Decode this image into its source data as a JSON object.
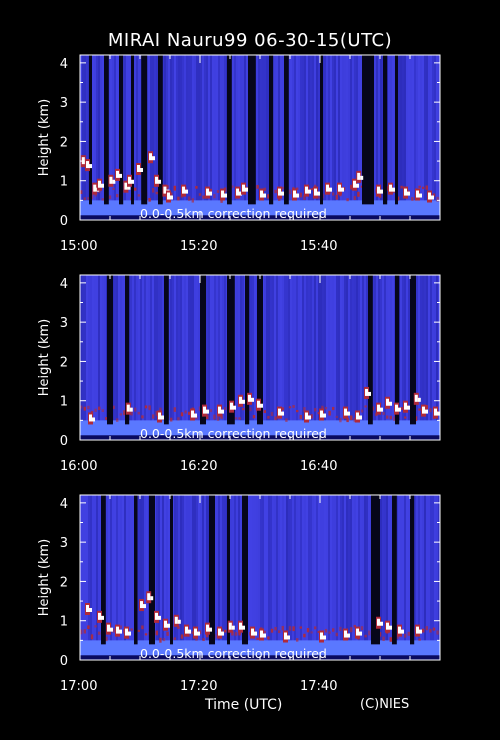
{
  "title": "MIRAI Nauru99 06-30-15(UTC)",
  "xlabel": "Time (UTC)",
  "credit": "(C)NIES",
  "colors": {
    "background": "#000000",
    "axis": "#ffffff",
    "noise_blue": "#3a3ad8",
    "near_surface": "#5a78ff",
    "aerosol_red": "#b02a3a",
    "cloud_white": "#ffffff"
  },
  "chart_data": [
    {
      "type": "heatmap",
      "ylabel": "Height (km)",
      "ylim": [
        0,
        4.2
      ],
      "yticks": [
        "0",
        "1",
        "2",
        "3",
        "4"
      ],
      "xlim": [
        "15:00",
        "16:00"
      ],
      "xticks": [
        "15:00",
        "15:20",
        "15:40"
      ],
      "annotation": "0.0-0.5km correction required",
      "data_gaps_min": [
        [
          1.5,
          2.0
        ],
        [
          4.0,
          4.8
        ],
        [
          6.5,
          7.2
        ],
        [
          8.5,
          9.0
        ],
        [
          10.2,
          11.2
        ],
        [
          13.0,
          13.8
        ],
        [
          24.5,
          25.3
        ],
        [
          28.0,
          29.3
        ],
        [
          31.5,
          32.2
        ],
        [
          34.0,
          34.8
        ],
        [
          40.0,
          40.5
        ],
        [
          47.0,
          49.0
        ],
        [
          50.5,
          51.2
        ],
        [
          52.5,
          53.0
        ]
      ],
      "cloud_base_km": [
        [
          0.3,
          1.6
        ],
        [
          1.0,
          1.5
        ],
        [
          2.2,
          0.9
        ],
        [
          3.0,
          1.0
        ],
        [
          4.9,
          1.1
        ],
        [
          6.0,
          1.25
        ],
        [
          7.4,
          0.95
        ],
        [
          8.0,
          1.1
        ],
        [
          9.5,
          1.4
        ],
        [
          11.5,
          1.7
        ],
        [
          12.5,
          1.1
        ],
        [
          13.9,
          0.85
        ],
        [
          14.5,
          0.7
        ],
        [
          17.0,
          0.85
        ],
        [
          21.0,
          0.8
        ],
        [
          23.5,
          0.75
        ],
        [
          26.0,
          0.8
        ],
        [
          27.0,
          0.9
        ],
        [
          30.0,
          0.75
        ],
        [
          33.0,
          0.8
        ],
        [
          35.5,
          0.75
        ],
        [
          37.5,
          0.85
        ],
        [
          39.0,
          0.8
        ],
        [
          41.0,
          0.9
        ],
        [
          43.0,
          0.9
        ],
        [
          45.5,
          1.0
        ],
        [
          46.2,
          1.2
        ],
        [
          49.5,
          0.85
        ],
        [
          51.5,
          0.9
        ],
        [
          54.0,
          0.8
        ],
        [
          56.0,
          0.75
        ],
        [
          58.0,
          0.7
        ]
      ]
    },
    {
      "type": "heatmap",
      "ylabel": "Height (km)",
      "ylim": [
        0,
        4.2
      ],
      "yticks": [
        "0",
        "1",
        "2",
        "3",
        "4"
      ],
      "xlim": [
        "16:00",
        "17:00"
      ],
      "xticks": [
        "16:00",
        "16:20",
        "16:40"
      ],
      "annotation": "0.0-0.5km correction required",
      "data_gaps_min": [
        [
          4.5,
          5.5
        ],
        [
          7.5,
          8.2
        ],
        [
          14.0,
          14.8
        ],
        [
          20.0,
          21.0
        ],
        [
          24.5,
          25.8
        ],
        [
          27.5,
          28.2
        ],
        [
          29.5,
          30.5
        ],
        [
          48.0,
          48.8
        ],
        [
          52.5,
          53.2
        ],
        [
          55.0,
          56.0
        ]
      ],
      "cloud_base_km": [
        [
          1.5,
          0.65
        ],
        [
          7.8,
          0.9
        ],
        [
          13.0,
          0.7
        ],
        [
          18.5,
          0.75
        ],
        [
          20.5,
          0.85
        ],
        [
          23.0,
          0.85
        ],
        [
          25.0,
          0.95
        ],
        [
          26.5,
          1.1
        ],
        [
          28.0,
          1.15
        ],
        [
          29.5,
          1.0
        ],
        [
          33.0,
          0.8
        ],
        [
          37.5,
          0.7
        ],
        [
          40.0,
          0.75
        ],
        [
          44.0,
          0.8
        ],
        [
          46.0,
          0.7
        ],
        [
          47.5,
          1.3
        ],
        [
          49.5,
          0.9
        ],
        [
          51.0,
          1.05
        ],
        [
          52.5,
          0.9
        ],
        [
          54.0,
          0.95
        ],
        [
          55.8,
          1.15
        ],
        [
          57.0,
          0.85
        ],
        [
          59.0,
          0.8
        ]
      ]
    },
    {
      "type": "heatmap",
      "ylabel": "Height (km)",
      "ylim": [
        0,
        4.2
      ],
      "yticks": [
        "0",
        "1",
        "2",
        "3",
        "4"
      ],
      "xlim": [
        "17:00",
        "18:00"
      ],
      "xticks": [
        "17:00",
        "17:20",
        "17:40"
      ],
      "annotation": "0.0-0.5km correction required",
      "data_gaps_min": [
        [
          3.5,
          4.3
        ],
        [
          9.0,
          9.6
        ],
        [
          11.5,
          12.5
        ],
        [
          15.0,
          15.5
        ],
        [
          21.5,
          22.5
        ],
        [
          24.5,
          25.0
        ],
        [
          27.0,
          28.0
        ],
        [
          48.5,
          50.0
        ],
        [
          52.0,
          52.8
        ],
        [
          55.0,
          55.7
        ]
      ],
      "cloud_base_km": [
        [
          1.0,
          1.4
        ],
        [
          3.0,
          1.2
        ],
        [
          4.5,
          0.9
        ],
        [
          6.0,
          0.85
        ],
        [
          7.5,
          0.8
        ],
        [
          10.0,
          1.5
        ],
        [
          11.2,
          1.7
        ],
        [
          12.5,
          1.2
        ],
        [
          14.0,
          1.0
        ],
        [
          15.8,
          1.1
        ],
        [
          17.5,
          0.85
        ],
        [
          19.0,
          0.8
        ],
        [
          21.0,
          0.9
        ],
        [
          23.0,
          0.8
        ],
        [
          24.8,
          0.95
        ],
        [
          26.5,
          0.95
        ],
        [
          28.5,
          0.8
        ],
        [
          30.0,
          0.75
        ],
        [
          34.0,
          0.7
        ],
        [
          40.0,
          0.7
        ],
        [
          44.0,
          0.75
        ],
        [
          46.0,
          0.8
        ],
        [
          49.5,
          1.05
        ],
        [
          51.0,
          0.95
        ],
        [
          53.0,
          0.85
        ],
        [
          56.0,
          0.85
        ]
      ]
    }
  ]
}
